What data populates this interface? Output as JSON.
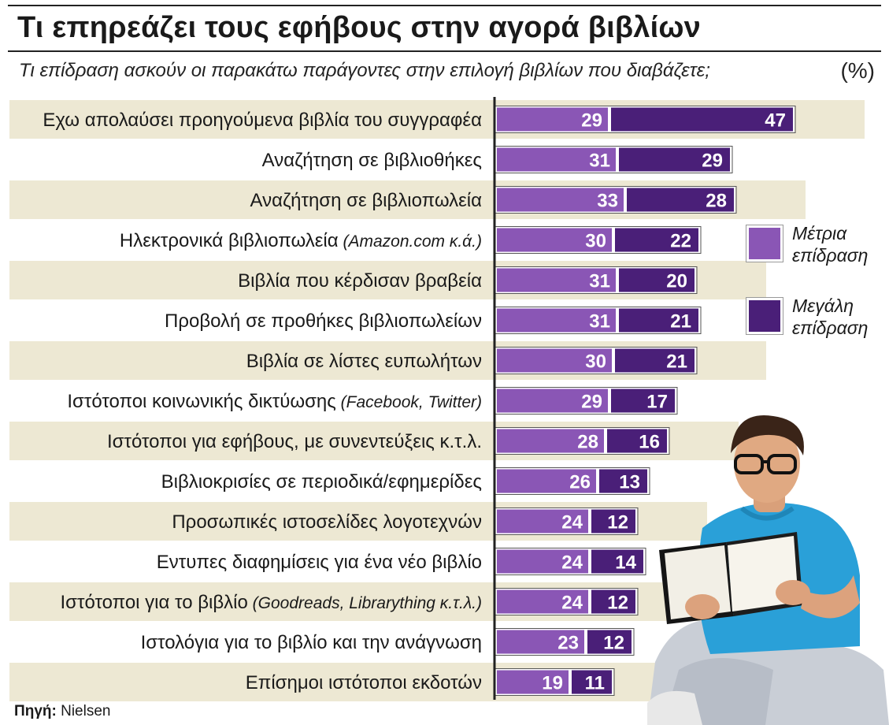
{
  "title": "Τι επηρεάζει τους εφήβους στην αγορά βιβλίων",
  "subtitle": "Τι επίδραση ασκούν οι παρακάτω παράγοντες στην επιλογή βιβλίων που διαβάζετε;",
  "unit": "(%)",
  "source_label": "Πηγή:",
  "source": "Nielsen",
  "colors": {
    "moderate": "#8a56b5",
    "strong": "#4a1f78",
    "stripe": "#ede8d3",
    "axis": "#222222"
  },
  "illustration": "teen-reading-book-photo",
  "chart_data": {
    "type": "bar",
    "orientation": "horizontal",
    "stacked": true,
    "categories": [
      {
        "main": "Εχω απολαύσει προηγούμενα βιβλία του συγγραφέα",
        "paren": ""
      },
      {
        "main": "Αναζήτηση σε βιβλιοθήκες",
        "paren": ""
      },
      {
        "main": "Αναζήτηση σε βιβλιοπωλεία",
        "paren": ""
      },
      {
        "main": "Ηλεκτρονικά βιβλιοπωλεία",
        "paren": "(Amazon.com κ.ά.)"
      },
      {
        "main": "Βιβλία που κέρδισαν βραβεία",
        "paren": ""
      },
      {
        "main": "Προβολή σε προθήκες βιβλιοπωλείων",
        "paren": ""
      },
      {
        "main": "Βιβλία σε λίστες ευπωλήτων",
        "paren": ""
      },
      {
        "main": "Ιστότοποι κοινωνικής δικτύωσης",
        "paren": "(Facebook, Twitter)"
      },
      {
        "main": "Ιστότοποι για εφήβους, με συνεντεύξεις κ.τ.λ.",
        "paren": ""
      },
      {
        "main": "Βιβλιοκρισίες σε περιοδικά/εφημερίδες",
        "paren": ""
      },
      {
        "main": "Προσωπικές ιστοσελίδες λογοτεχνών",
        "paren": ""
      },
      {
        "main": "Εντυπες διαφημίσεις για ένα νέο βιβλίο",
        "paren": ""
      },
      {
        "main": "Ιστότοποι για το βιβλίο",
        "paren": "(Goodreads, Librarything κ.τ.λ.)"
      },
      {
        "main": "Ιστολόγια για το βιβλίο και την ανάγνωση",
        "paren": ""
      },
      {
        "main": "Επίσημοι ιστότοποι εκδοτών",
        "paren": ""
      }
    ],
    "series": [
      {
        "name": "Μέτρια επίδραση",
        "color": "#8a56b5",
        "values": [
          29,
          31,
          33,
          30,
          31,
          31,
          30,
          29,
          28,
          26,
          24,
          24,
          24,
          23,
          19
        ]
      },
      {
        "name": "Μεγάλη επίδραση",
        "color": "#4a1f78",
        "values": [
          47,
          29,
          28,
          22,
          20,
          21,
          21,
          17,
          16,
          13,
          12,
          14,
          12,
          12,
          11
        ]
      }
    ],
    "legend_position": "right",
    "grid": false
  }
}
